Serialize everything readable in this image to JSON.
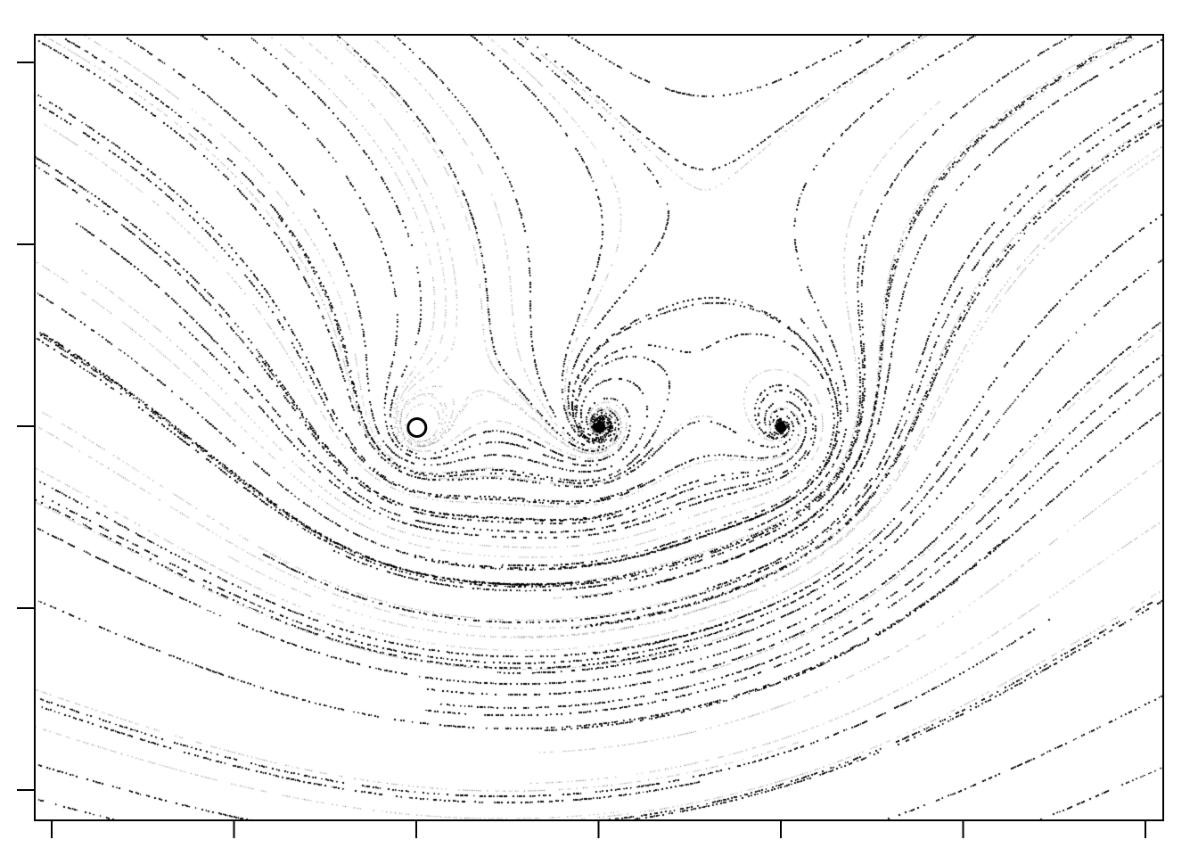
{
  "figure": {
    "kind": "streamline-texture",
    "ink_color": "#000000",
    "background_color": "#ffffff",
    "x_ticks": 7,
    "y_ticks": 5,
    "tick_labels": "none",
    "title": ""
  },
  "field": {
    "x_range": [
      -2.1,
      4.1
    ],
    "y_range": [
      -2.0,
      2.0
    ],
    "singularities": [
      {
        "type": "hollow-vortex",
        "x": 0,
        "y": 0,
        "strength": 1.0,
        "rotation": "counterclockwise"
      },
      {
        "type": "spiral-focus",
        "x": 1,
        "y": 0,
        "strength": 1.0,
        "rotation": "counterclockwise"
      },
      {
        "type": "spiral-focus",
        "x": 2,
        "y": 0,
        "strength": 1.0,
        "rotation": "counterclockwise"
      }
    ]
  }
}
